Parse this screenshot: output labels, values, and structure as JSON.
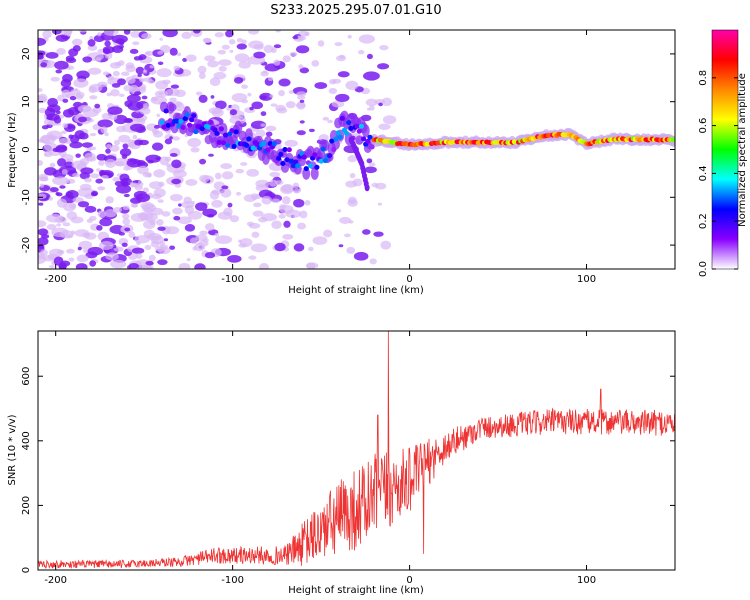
{
  "title": "S233.2025.295.07.01.G10",
  "chart_data": [
    {
      "type": "heatmap",
      "name": "spectrogram",
      "xlabel": "Height of straight line (km)",
      "ylabel": "Frequency (Hz)",
      "xlim": [
        -210,
        150
      ],
      "ylim": [
        -25,
        25
      ],
      "x_ticks": [
        -200,
        -100,
        0,
        100
      ],
      "y_ticks": [
        -20,
        -10,
        0,
        10,
        20
      ],
      "colorbar": {
        "label": "Normalized spectral amplitude",
        "range": [
          0,
          1
        ],
        "ticks": [
          "0.0",
          "0.2",
          "0.4",
          "0.6",
          "0.8"
        ],
        "colors": [
          "#ffffff",
          "#8800ff",
          "#0000ff",
          "#00ffff",
          "#00ff00",
          "#ffff00",
          "#ff8800",
          "#ff0000",
          "#ff00aa"
        ]
      },
      "ridge": [
        {
          "x": -130,
          "f": 6.5
        },
        {
          "x": -110,
          "f": 3.5
        },
        {
          "x": -90,
          "f": 1.5
        },
        {
          "x": -70,
          "f": -1.5
        },
        {
          "x": -55,
          "f": -3
        },
        {
          "x": -45,
          "f": 0
        },
        {
          "x": -38,
          "f": 5
        },
        {
          "x": -30,
          "f": 4
        },
        {
          "x": -20,
          "f": 2
        },
        {
          "x": 0,
          "f": 1
        },
        {
          "x": 20,
          "f": 1.5
        },
        {
          "x": 60,
          "f": 1.5
        },
        {
          "x": 75,
          "f": 2.8
        },
        {
          "x": 90,
          "f": 3.2
        },
        {
          "x": 100,
          "f": 1.2
        },
        {
          "x": 115,
          "f": 2.2
        },
        {
          "x": 150,
          "f": 2
        }
      ],
      "branch": [
        {
          "x": -33,
          "f": 2
        },
        {
          "x": -27,
          "f": -3
        },
        {
          "x": -24,
          "f": -8
        }
      ]
    },
    {
      "type": "line",
      "name": "snr",
      "xlabel": "Height of straight line (km)",
      "ylabel": "SNR (10 * v/v)",
      "xlim": [
        -210,
        150
      ],
      "ylim": [
        0,
        740
      ],
      "x_ticks": [
        -200,
        -100,
        0,
        100
      ],
      "y_ticks": [
        0,
        200,
        400,
        600
      ],
      "color": "#ee3333",
      "envelope": [
        {
          "x": -210,
          "mean": 18,
          "noise": 12
        },
        {
          "x": -160,
          "mean": 18,
          "noise": 12
        },
        {
          "x": -130,
          "mean": 25,
          "noise": 15
        },
        {
          "x": -110,
          "mean": 45,
          "noise": 25
        },
        {
          "x": -70,
          "mean": 45,
          "noise": 30
        },
        {
          "x": -60,
          "mean": 80,
          "noise": 70
        },
        {
          "x": -40,
          "mean": 160,
          "noise": 120
        },
        {
          "x": -20,
          "mean": 220,
          "noise": 140
        },
        {
          "x": 0,
          "mean": 280,
          "noise": 100
        },
        {
          "x": 20,
          "mean": 380,
          "noise": 50
        },
        {
          "x": 40,
          "mean": 440,
          "noise": 35
        },
        {
          "x": 80,
          "mean": 460,
          "noise": 40
        },
        {
          "x": 150,
          "mean": 455,
          "noise": 40
        }
      ],
      "spikes": [
        {
          "x": -12,
          "y": 740
        },
        {
          "x": -18,
          "y": 480
        },
        {
          "x": 8,
          "y": 50
        },
        {
          "x": 108,
          "y": 560
        }
      ]
    }
  ]
}
